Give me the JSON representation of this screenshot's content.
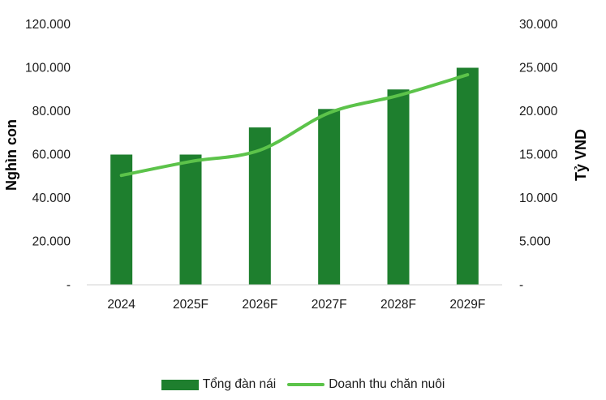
{
  "chart_data": {
    "type": "bar",
    "categories": [
      "2024",
      "2025F",
      "2026F",
      "2027F",
      "2028F",
      "2029F"
    ],
    "series": [
      {
        "name": "Tổng đàn nái",
        "kind": "bar",
        "axis": "left",
        "values": [
          60000,
          60000,
          72500,
          81000,
          90000,
          100000
        ],
        "color": "#1e7f2e"
      },
      {
        "name": "Doanh thu chăn nuôi",
        "kind": "line",
        "axis": "right",
        "values": [
          12600,
          14200,
          15500,
          19800,
          21800,
          24200
        ],
        "color": "#5cc34a"
      }
    ],
    "ylabel_left": "Nghìn con",
    "ylabel_right": "Tỷ VND",
    "ylim_left": [
      0,
      120000
    ],
    "ylim_right": [
      0,
      30000
    ],
    "yticks_left": [
      "-",
      "20.000",
      "40.000",
      "60.000",
      "80.000",
      "100.000",
      "120.000"
    ],
    "yticks_right": [
      "-",
      "5.000",
      "10.000",
      "15.000",
      "20.000",
      "25.000",
      "30.000"
    ],
    "grid": false,
    "legend_position": "bottom"
  }
}
